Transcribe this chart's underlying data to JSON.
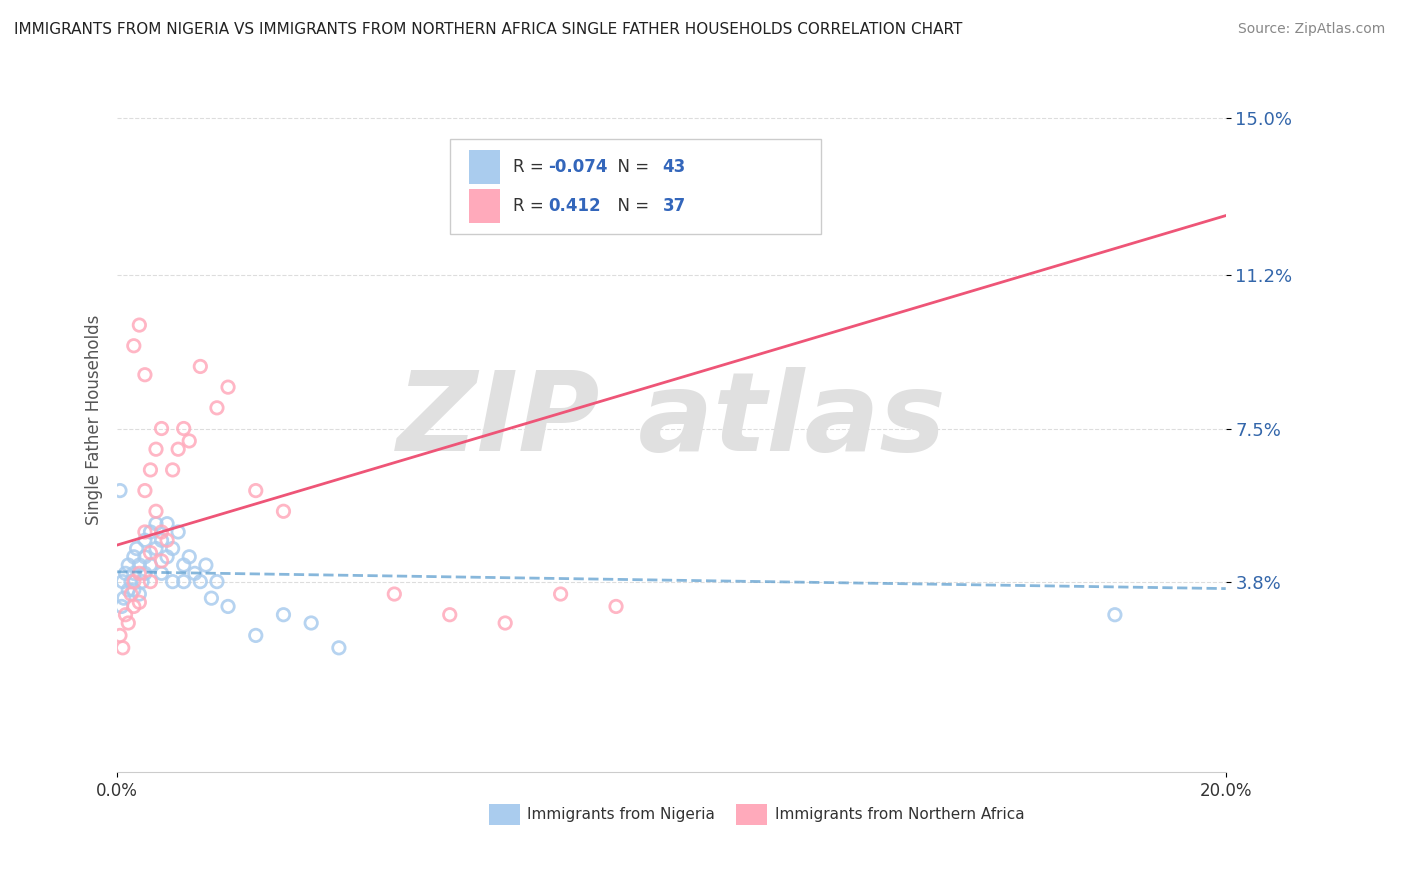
{
  "title": "IMMIGRANTS FROM NIGERIA VS IMMIGRANTS FROM NORTHERN AFRICA SINGLE FATHER HOUSEHOLDS CORRELATION CHART",
  "source": "Source: ZipAtlas.com",
  "ylabel": "Single Father Households",
  "legend1_label": "Immigrants from Nigeria",
  "legend2_label": "Immigrants from Northern Africa",
  "R1": -0.074,
  "N1": 43,
  "R2": 0.412,
  "N2": 37,
  "color1": "#aaccee",
  "color2": "#ffaabb",
  "trendline1_color": "#5599cc",
  "trendline2_color": "#ee5577",
  "xmin": 0.0,
  "xmax": 0.2,
  "ymin": -0.008,
  "ymax": 0.162,
  "ytick_vals": [
    0.038,
    0.075,
    0.112,
    0.15
  ],
  "ytick_labels": [
    "3.8%",
    "7.5%",
    "11.2%",
    "15.0%"
  ],
  "xtick_vals": [
    0.0,
    0.2
  ],
  "xtick_labels": [
    "0.0%",
    "20.0%"
  ],
  "watermark_color": "#e0e0e0",
  "background_color": "#ffffff",
  "grid_color": "#dddddd",
  "nigeria_x": [
    0.0008,
    0.001,
    0.0012,
    0.0015,
    0.002,
    0.002,
    0.0025,
    0.003,
    0.003,
    0.003,
    0.0035,
    0.004,
    0.004,
    0.0045,
    0.005,
    0.005,
    0.005,
    0.006,
    0.006,
    0.007,
    0.007,
    0.008,
    0.008,
    0.009,
    0.009,
    0.01,
    0.01,
    0.011,
    0.012,
    0.012,
    0.013,
    0.014,
    0.015,
    0.016,
    0.017,
    0.018,
    0.02,
    0.025,
    0.03,
    0.035,
    0.04,
    0.18,
    0.0005
  ],
  "nigeria_y": [
    0.032,
    0.038,
    0.034,
    0.04,
    0.036,
    0.042,
    0.038,
    0.044,
    0.036,
    0.04,
    0.046,
    0.035,
    0.042,
    0.038,
    0.048,
    0.04,
    0.044,
    0.05,
    0.042,
    0.052,
    0.046,
    0.048,
    0.04,
    0.052,
    0.044,
    0.046,
    0.038,
    0.05,
    0.042,
    0.038,
    0.044,
    0.04,
    0.038,
    0.042,
    0.034,
    0.038,
    0.032,
    0.025,
    0.03,
    0.028,
    0.022,
    0.03,
    0.06
  ],
  "nafrica_x": [
    0.0005,
    0.001,
    0.0015,
    0.002,
    0.0025,
    0.003,
    0.003,
    0.004,
    0.004,
    0.005,
    0.005,
    0.006,
    0.006,
    0.007,
    0.008,
    0.008,
    0.009,
    0.01,
    0.011,
    0.012,
    0.013,
    0.015,
    0.018,
    0.02,
    0.025,
    0.03,
    0.003,
    0.004,
    0.005,
    0.006,
    0.007,
    0.008,
    0.05,
    0.06,
    0.07,
    0.08,
    0.09
  ],
  "nafrica_y": [
    0.025,
    0.022,
    0.03,
    0.028,
    0.035,
    0.032,
    0.038,
    0.04,
    0.033,
    0.06,
    0.05,
    0.045,
    0.038,
    0.055,
    0.05,
    0.043,
    0.048,
    0.065,
    0.07,
    0.075,
    0.072,
    0.09,
    0.08,
    0.085,
    0.06,
    0.055,
    0.095,
    0.1,
    0.088,
    0.065,
    0.07,
    0.075,
    0.035,
    0.03,
    0.028,
    0.035,
    0.032
  ]
}
